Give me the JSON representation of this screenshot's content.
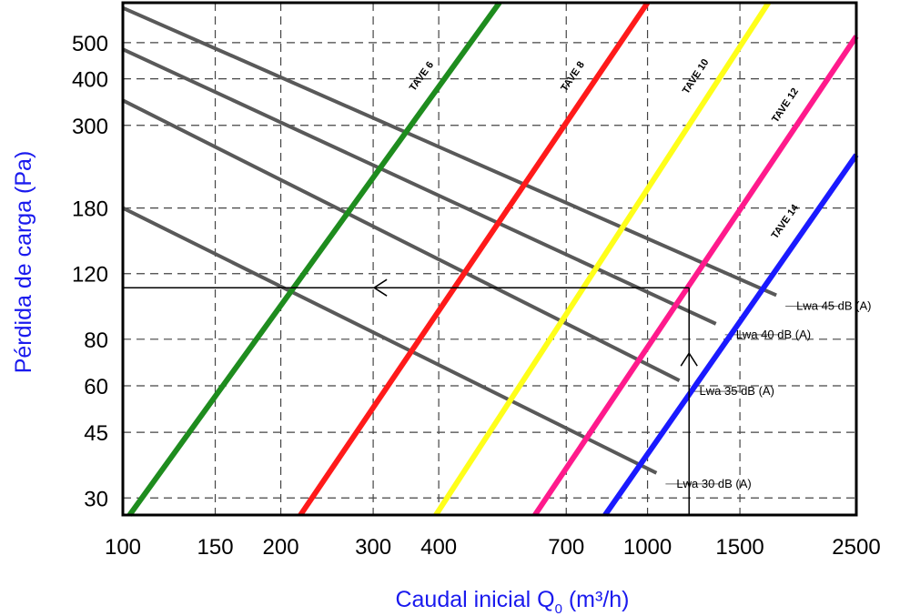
{
  "chart_data": {
    "type": "line",
    "x_scale": "log",
    "y_scale": "log",
    "xlabel": "Caudal inicial Q",
    "xlabel_sub": "0",
    "xlabel_tail": " (m³/h)",
    "ylabel": "Pérdida de carga (Pa)",
    "xlim": [
      100,
      2500
    ],
    "ylim": [
      27,
      640
    ],
    "grid": true,
    "x_ticks": [
      100,
      150,
      200,
      300,
      400,
      700,
      1000,
      1500,
      2500
    ],
    "x_tick_labels": [
      "100",
      "150",
      "200",
      "300",
      "400",
      "700",
      "1000",
      "1500",
      "2500"
    ],
    "y_ticks": [
      30,
      45,
      60,
      80,
      120,
      180,
      300,
      400,
      500
    ],
    "y_tick_labels": [
      "30",
      "45",
      "60",
      "80",
      "120",
      "180",
      "300",
      "400",
      "500"
    ],
    "series": [
      {
        "name": "TAVE 6",
        "color": "#1e8c1e",
        "x": [
          103,
          522
        ],
        "y": [
          27,
          640
        ]
      },
      {
        "name": "TAVE 8",
        "color": "#ff1a1a",
        "x": [
          218,
          1000
        ],
        "y": [
          27,
          640
        ]
      },
      {
        "name": "TAVE 10",
        "color": "#ffff1a",
        "x": [
          395,
          1700
        ],
        "y": [
          27,
          640
        ]
      },
      {
        "name": "TAVE 12",
        "color": "#ff1a8c",
        "x": [
          610,
          2500
        ],
        "y": [
          27,
          520
        ]
      },
      {
        "name": "TAVE 14",
        "color": "#1a1aff",
        "x": [
          830,
          2500
        ],
        "y": [
          27,
          250
        ]
      }
    ],
    "noise_curves": [
      {
        "name": "Lwa 45 dB (A)",
        "x": [
          100,
          1760
        ],
        "y": [
          620,
          105
        ]
      },
      {
        "name": "Lwa 40 dB (A)",
        "x": [
          100,
          1350
        ],
        "y": [
          480,
          88
        ]
      },
      {
        "name": "Lwa 35 dB (A)",
        "x": [
          100,
          1150
        ],
        "y": [
          350,
          62
        ]
      },
      {
        "name": "Lwa 30 dB (A)",
        "x": [
          100,
          1040
        ],
        "y": [
          180,
          35
        ]
      }
    ],
    "annotation": {
      "x": 1200,
      "y": 110
    }
  }
}
